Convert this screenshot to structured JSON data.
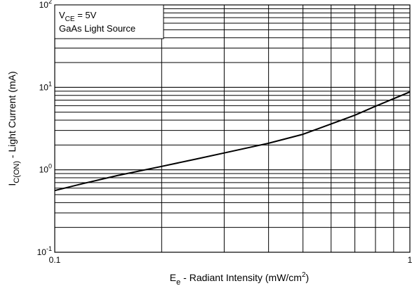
{
  "chart_data": {
    "type": "line",
    "title": "",
    "xlabel": "E_e - Radiant Intensity (mW/cm^2)",
    "ylabel": "I_C(ON) - Light Current (mA)",
    "xscale": "log",
    "yscale": "log",
    "xlim": [
      0.1,
      1
    ],
    "ylim": [
      0.1,
      100
    ],
    "grid": true,
    "x_ticks": [
      {
        "value": 0.1,
        "label": "0.1"
      },
      {
        "value": 1,
        "label": "1"
      }
    ],
    "y_ticks": [
      {
        "value": 0.1,
        "base": "10",
        "exp": "-1"
      },
      {
        "value": 1,
        "base": "10",
        "exp": "0"
      },
      {
        "value": 10,
        "base": "10",
        "exp": "1"
      },
      {
        "value": 100,
        "base": "10",
        "exp": "2"
      }
    ],
    "annotation": {
      "line1": {
        "prefix": "V",
        "sub": "CE",
        "suffix": " = 5V"
      },
      "line2": "GaAs Light Source",
      "position": "top-left"
    },
    "series": [
      {
        "x": [
          0.1,
          0.12,
          0.15,
          0.2,
          0.25,
          0.3,
          0.4,
          0.5,
          0.6,
          0.7,
          0.8,
          1.0
        ],
        "y": [
          0.56,
          0.68,
          0.85,
          1.1,
          1.35,
          1.6,
          2.1,
          2.7,
          3.6,
          4.6,
          5.9,
          8.8
        ]
      }
    ],
    "colors": {
      "line": "#000000",
      "grid": "#000000",
      "background": "#ffffff"
    }
  }
}
